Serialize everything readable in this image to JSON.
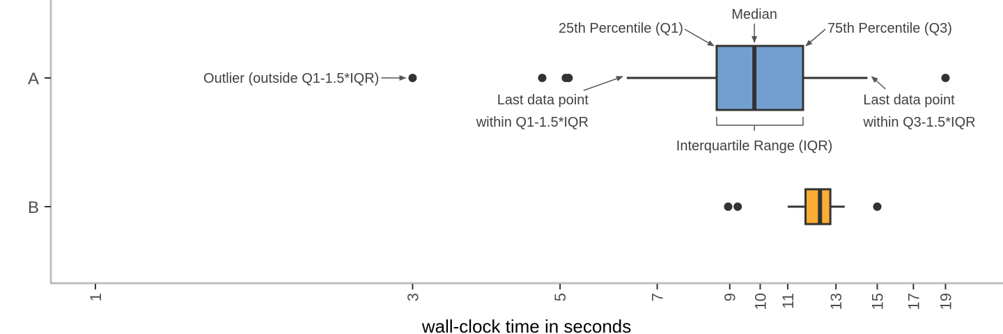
{
  "chart_data": {
    "type": "boxplot",
    "orientation": "horizontal",
    "x_scale": "log",
    "xlabel": "wall-clock time in seconds",
    "ylabel": "",
    "x_ticks": [
      1,
      3,
      5,
      7,
      9,
      10,
      11,
      13,
      15,
      17,
      19
    ],
    "xlim": [
      0.9,
      23
    ],
    "grid": false,
    "series": [
      {
        "name": "A",
        "color": "#729fcf",
        "whisker_low": 6.3,
        "q1": 8.6,
        "median": 9.8,
        "q3": 11.6,
        "whisker_high": 14.5,
        "outliers": [
          3.0,
          4.7,
          5.1,
          5.15,
          19.0
        ]
      },
      {
        "name": "B",
        "color": "#fbad35",
        "whisker_low": 11.0,
        "q1": 11.7,
        "median": 12.3,
        "q3": 12.75,
        "whisker_high": 13.4,
        "outliers": [
          8.95,
          9.25,
          15.0
        ]
      }
    ],
    "annotations": {
      "median": "Median",
      "q1": "25th Percentile (Q1)",
      "q3": "75th Percentile (Q3)",
      "outlier": "Outlier (outside Q1-1.5*IQR)",
      "last_low_line1": "Last data point",
      "last_low_line2": "within Q1-1.5*IQR",
      "last_high_line1": "Last data point",
      "last_high_line2": "within Q3-1.5*IQR",
      "iqr": "Interquartile Range (IQR)"
    }
  }
}
